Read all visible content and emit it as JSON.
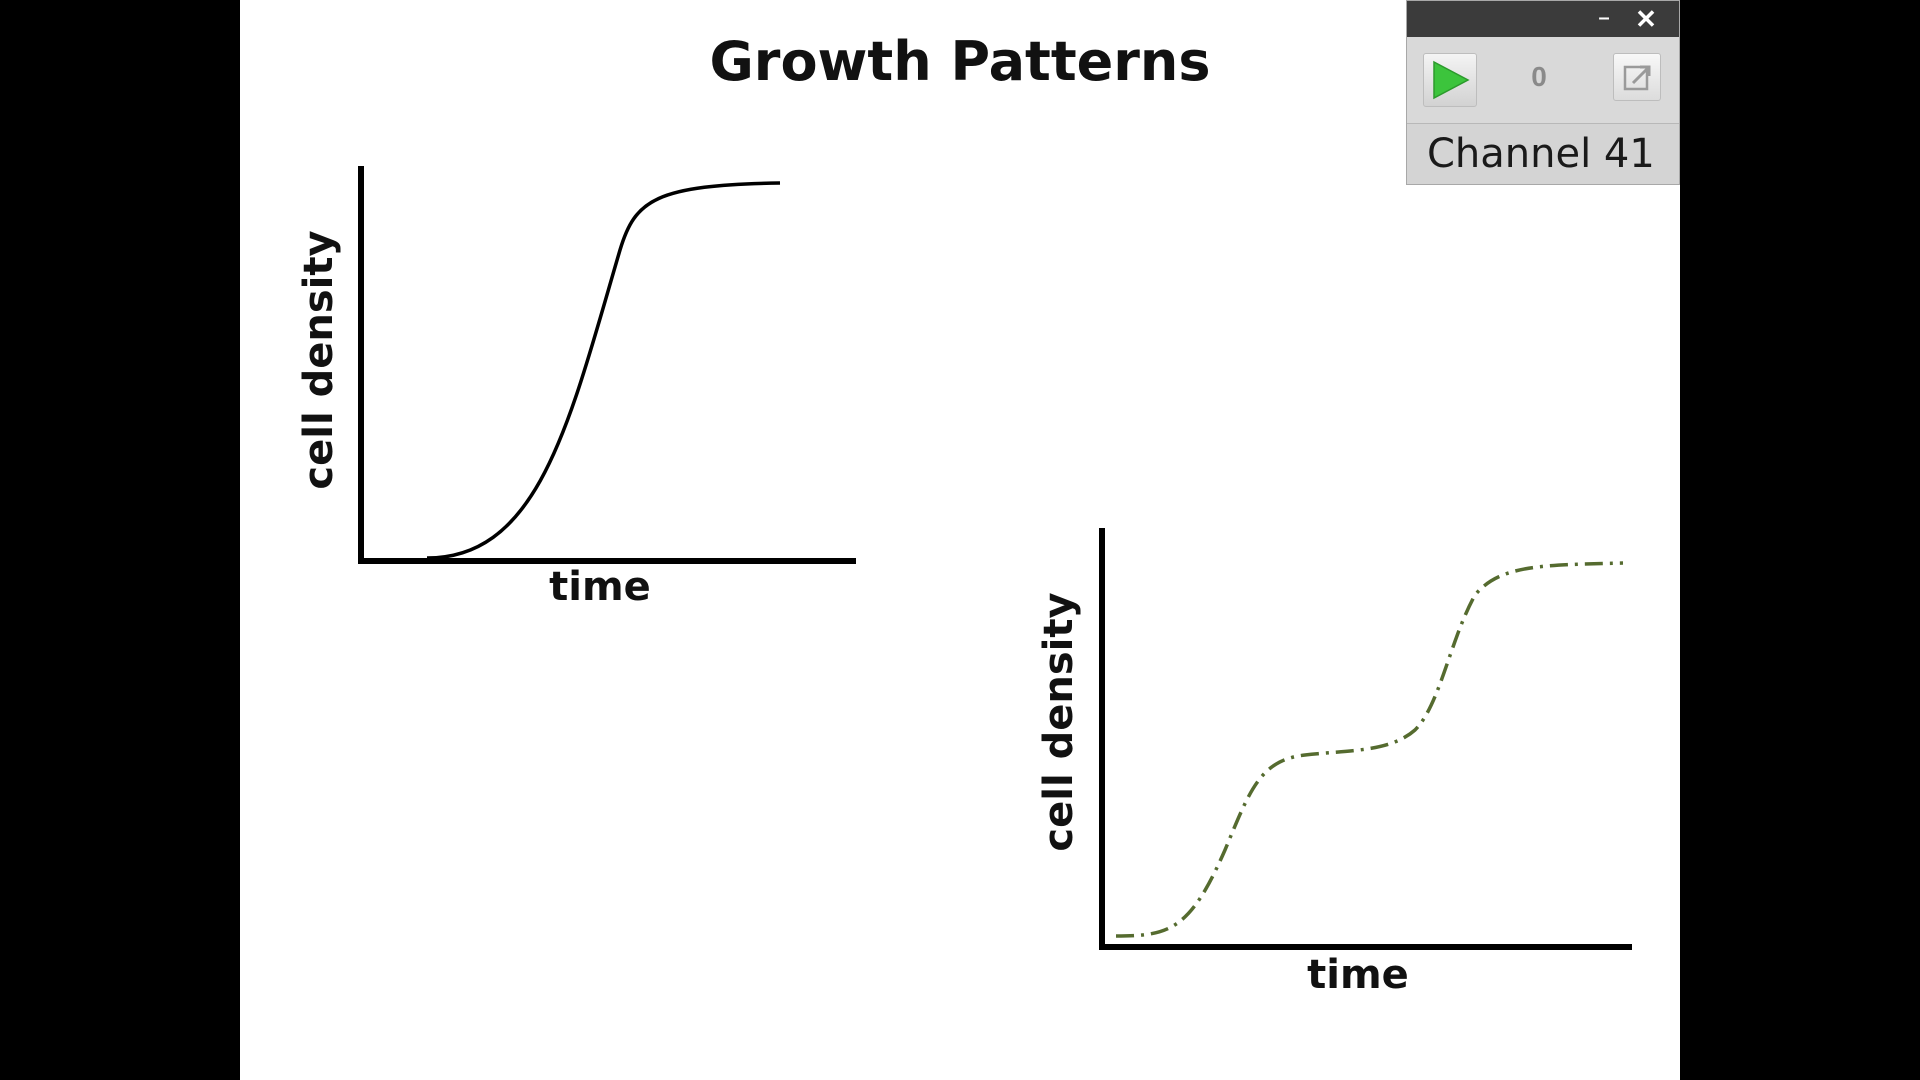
{
  "slide": {
    "title": "Growth Patterns"
  },
  "charts": {
    "left": {
      "ylabel": "cell density",
      "xlabel": "time",
      "line_color": "#000000"
    },
    "right": {
      "ylabel": "cell density",
      "xlabel": "time",
      "line_color": "#556b2f"
    }
  },
  "widget": {
    "minimize_glyph": "–",
    "close_glyph": "✕",
    "counter": "0",
    "channel": "Channel 41",
    "icons": {
      "play": "play-icon",
      "popout": "popout-icon"
    },
    "play_color": "#3cc43c"
  },
  "chart_data": [
    {
      "type": "line",
      "xlabel": "time",
      "ylabel": "cell density",
      "series": [
        {
          "style": "solid",
          "color": "#000000",
          "x": [
            0,
            0.15,
            0.3,
            0.42,
            0.5,
            0.55,
            0.6,
            0.75,
            1.0
          ],
          "y": [
            0,
            0.01,
            0.15,
            0.5,
            0.8,
            0.91,
            0.96,
            0.99,
            1.0
          ]
        }
      ]
    },
    {
      "type": "line",
      "xlabel": "time",
      "ylabel": "cell density",
      "series": [
        {
          "style": "dash-dot",
          "color": "#556b2f",
          "x": [
            0,
            0.12,
            0.25,
            0.33,
            0.4,
            0.55,
            0.64,
            0.7,
            0.77,
            0.82,
            0.9,
            1.0
          ],
          "y": [
            0.03,
            0.05,
            0.33,
            0.44,
            0.52,
            0.55,
            0.58,
            0.74,
            0.92,
            0.96,
            0.98,
            1.0
          ]
        }
      ]
    }
  ]
}
